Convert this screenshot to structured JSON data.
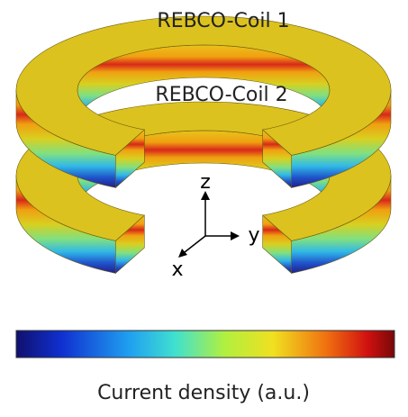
{
  "labels": {
    "coil_1": "REBCO-Coil 1",
    "coil_2": "REBCO-Coil 2"
  },
  "axes": {
    "z": "z",
    "y": "y",
    "x": "x"
  },
  "colorbar": {
    "label": "Current density (a.u.)"
  }
}
